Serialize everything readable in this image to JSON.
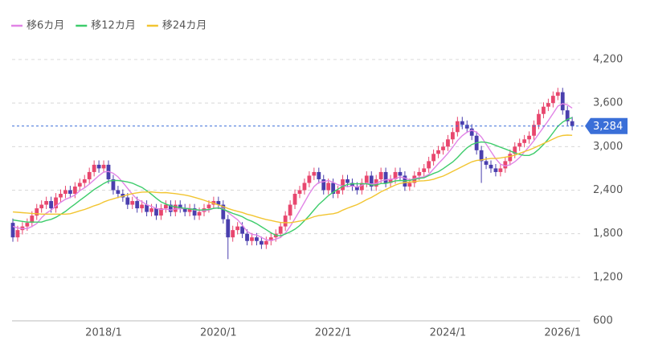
{
  "chart_data": {
    "type": "candlestick",
    "x": [
      "2016/6",
      "2016/7",
      "2016/8",
      "2016/9",
      "2016/10",
      "2016/11",
      "2016/12",
      "2017/1",
      "2017/2",
      "2017/3",
      "2017/4",
      "2017/5",
      "2017/6",
      "2017/7",
      "2017/8",
      "2017/9",
      "2017/10",
      "2017/11",
      "2017/12",
      "2018/1",
      "2018/2",
      "2018/3",
      "2018/4",
      "2018/5",
      "2018/6",
      "2018/7",
      "2018/8",
      "2018/9",
      "2018/10",
      "2018/11",
      "2018/12",
      "2019/1",
      "2019/2",
      "2019/3",
      "2019/4",
      "2019/5",
      "2019/6",
      "2019/7",
      "2019/8",
      "2019/9",
      "2019/10",
      "2019/11",
      "2019/12",
      "2020/1",
      "2020/2",
      "2020/3",
      "2020/4",
      "2020/5",
      "2020/6",
      "2020/7",
      "2020/8",
      "2020/9",
      "2020/10",
      "2020/11",
      "2020/12",
      "2021/1",
      "2021/2",
      "2021/3",
      "2021/4",
      "2021/5",
      "2021/6",
      "2021/7",
      "2021/8",
      "2021/9",
      "2021/10",
      "2021/11",
      "2021/12",
      "2022/1",
      "2022/2",
      "2022/3",
      "2022/4",
      "2022/5",
      "2022/6",
      "2022/7",
      "2022/8",
      "2022/9",
      "2022/10",
      "2022/11",
      "2022/12",
      "2023/1",
      "2023/2",
      "2023/3",
      "2023/4",
      "2023/5",
      "2023/6",
      "2023/7",
      "2023/8",
      "2023/9",
      "2023/10",
      "2023/11",
      "2023/12",
      "2024/1",
      "2024/2",
      "2024/3",
      "2024/4",
      "2024/5",
      "2024/6",
      "2024/7",
      "2024/8",
      "2024/9",
      "2024/10",
      "2024/11",
      "2024/12",
      "2025/1",
      "2025/2",
      "2025/3",
      "2025/4",
      "2025/5",
      "2025/6",
      "2025/7",
      "2025/8",
      "2025/9",
      "2025/10",
      "2025/11",
      "2025/12",
      "2026/1",
      "2026/2",
      "2026/3"
    ],
    "open": [
      1950,
      1750,
      1850,
      1900,
      1950,
      2050,
      2150,
      2200,
      2250,
      2150,
      2300,
      2350,
      2400,
      2350,
      2450,
      2500,
      2550,
      2650,
      2750,
      2700,
      2750,
      2550,
      2400,
      2350,
      2300,
      2200,
      2250,
      2150,
      2200,
      2100,
      2150,
      2050,
      2150,
      2200,
      2100,
      2200,
      2150,
      2100,
      2150,
      2050,
      2100,
      2150,
      2200,
      2250,
      2200,
      2000,
      1750,
      1850,
      1900,
      1800,
      1700,
      1750,
      1700,
      1650,
      1700,
      1750,
      1800,
      1900,
      2050,
      2200,
      2350,
      2400,
      2500,
      2600,
      2650,
      2550,
      2400,
      2500,
      2350,
      2400,
      2550,
      2500,
      2450,
      2400,
      2500,
      2600,
      2450,
      2550,
      2650,
      2500,
      2550,
      2650,
      2600,
      2450,
      2500,
      2600,
      2650,
      2700,
      2800,
      2900,
      2950,
      3000,
      3100,
      3200,
      3350,
      3300,
      3250,
      3150,
      2950,
      2800,
      2750,
      2700,
      2650,
      2700,
      2800,
      2900,
      3000,
      3050,
      3100,
      3150,
      3300,
      3450,
      3550,
      3600,
      3700,
      3750,
      3500,
      3350
    ],
    "high": [
      2010,
      1910,
      1960,
      2010,
      2110,
      2210,
      2260,
      2310,
      2310,
      2360,
      2410,
      2460,
      2460,
      2510,
      2560,
      2610,
      2710,
      2810,
      2810,
      2810,
      2810,
      2610,
      2460,
      2410,
      2360,
      2310,
      2310,
      2260,
      2260,
      2210,
      2210,
      2210,
      2260,
      2260,
      2260,
      2260,
      2210,
      2210,
      2210,
      2160,
      2210,
      2260,
      2310,
      2310,
      2260,
      2060,
      1910,
      1960,
      1960,
      1860,
      1810,
      1810,
      1760,
      1760,
      1810,
      1860,
      1960,
      2110,
      2260,
      2410,
      2460,
      2560,
      2660,
      2710,
      2710,
      2610,
      2560,
      2560,
      2460,
      2610,
      2610,
      2560,
      2510,
      2560,
      2660,
      2660,
      2610,
      2710,
      2710,
      2610,
      2710,
      2710,
      2660,
      2560,
      2660,
      2710,
      2760,
      2860,
      2960,
      3010,
      3060,
      3160,
      3260,
      3410,
      3410,
      3360,
      3310,
      3210,
      3010,
      2860,
      2810,
      2760,
      2760,
      2860,
      2960,
      3060,
      3110,
      3160,
      3210,
      3360,
      3510,
      3610,
      3660,
      3760,
      3810,
      3810,
      3560,
      3410
    ],
    "low": [
      1690,
      1690,
      1790,
      1840,
      1890,
      1990,
      2090,
      2140,
      2090,
      2090,
      2240,
      2290,
      2290,
      2290,
      2390,
      2440,
      2490,
      2590,
      2640,
      2640,
      2490,
      2340,
      2290,
      2240,
      2140,
      2140,
      2090,
      2090,
      2040,
      2040,
      1990,
      1990,
      2090,
      2040,
      2040,
      2090,
      2040,
      2040,
      1990,
      1990,
      2040,
      2090,
      2140,
      2140,
      1940,
      1450,
      1690,
      1790,
      1740,
      1640,
      1640,
      1640,
      1590,
      1590,
      1640,
      1690,
      1740,
      1840,
      1990,
      2140,
      2290,
      2340,
      2440,
      2540,
      2490,
      2340,
      2340,
      2290,
      2290,
      2340,
      2440,
      2390,
      2340,
      2340,
      2440,
      2390,
      2390,
      2490,
      2440,
      2440,
      2490,
      2540,
      2390,
      2390,
      2440,
      2540,
      2590,
      2640,
      2740,
      2840,
      2890,
      2940,
      3040,
      3140,
      3240,
      3190,
      3090,
      2890,
      2500,
      2690,
      2640,
      2590,
      2590,
      2640,
      2740,
      2840,
      2940,
      2990,
      3040,
      3090,
      3240,
      3390,
      3490,
      3540,
      3640,
      3440,
      3290,
      3224
    ],
    "close": [
      1750,
      1850,
      1900,
      1950,
      2050,
      2150,
      2200,
      2250,
      2150,
      2300,
      2350,
      2400,
      2350,
      2450,
      2500,
      2550,
      2650,
      2750,
      2700,
      2750,
      2550,
      2400,
      2350,
      2300,
      2200,
      2250,
      2150,
      2200,
      2100,
      2150,
      2050,
      2150,
      2200,
      2100,
      2200,
      2150,
      2100,
      2150,
      2050,
      2100,
      2150,
      2200,
      2250,
      2200,
      2000,
      1750,
      1850,
      1900,
      1800,
      1700,
      1750,
      1700,
      1650,
      1700,
      1750,
      1800,
      1900,
      2050,
      2200,
      2350,
      2400,
      2500,
      2600,
      2650,
      2550,
      2400,
      2500,
      2350,
      2400,
      2550,
      2500,
      2450,
      2400,
      2500,
      2600,
      2450,
      2550,
      2650,
      2500,
      2550,
      2650,
      2600,
      2450,
      2500,
      2600,
      2650,
      2700,
      2800,
      2900,
      2950,
      3000,
      3100,
      3200,
      3350,
      3300,
      3250,
      3150,
      2950,
      2800,
      2750,
      2700,
      2650,
      2700,
      2800,
      2900,
      3000,
      3050,
      3100,
      3150,
      3300,
      3450,
      3550,
      3600,
      3700,
      3750,
      3500,
      3350,
      3284
    ],
    "up_color": "#e8476e",
    "down_color": "#4a3fae",
    "series": [
      {
        "name": "移6カ月",
        "color": "#e184e6",
        "values": [
          1900,
          1880,
          1870,
          1870,
          1900,
          1940,
          2020,
          2083,
          2125,
          2183,
          2233,
          2275,
          2300,
          2333,
          2392,
          2433,
          2483,
          2542,
          2600,
          2650,
          2658,
          2633,
          2583,
          2508,
          2425,
          2342,
          2275,
          2242,
          2200,
          2175,
          2150,
          2133,
          2142,
          2125,
          2142,
          2142,
          2150,
          2150,
          2125,
          2125,
          2117,
          2125,
          2150,
          2158,
          2150,
          2092,
          2042,
          1992,
          1917,
          1833,
          1792,
          1783,
          1750,
          1717,
          1708,
          1725,
          1750,
          1808,
          1900,
          2008,
          2117,
          2233,
          2350,
          2450,
          2508,
          2517,
          2533,
          2508,
          2475,
          2458,
          2450,
          2458,
          2442,
          2467,
          2500,
          2483,
          2492,
          2525,
          2542,
          2550,
          2558,
          2583,
          2567,
          2542,
          2558,
          2575,
          2583,
          2617,
          2692,
          2767,
          2833,
          2908,
          2992,
          3083,
          3150,
          3200,
          3225,
          3200,
          3133,
          3033,
          2933,
          2833,
          2758,
          2733,
          2750,
          2792,
          2850,
          2925,
          3000,
          3083,
          3175,
          3267,
          3358,
          3458,
          3558,
          3592,
          3575,
          3531
        ]
      },
      {
        "name": "移12カ月",
        "color": "#3dcc6b",
        "values": [
          1990,
          1980,
          1970,
          1960,
          1960,
          1960,
          1960,
          1982,
          1998,
          2027,
          2067,
          2108,
          2160,
          2208,
          2259,
          2308,
          2358,
          2409,
          2450,
          2492,
          2525,
          2533,
          2533,
          2525,
          2513,
          2496,
          2467,
          2438,
          2392,
          2342,
          2288,
          2238,
          2209,
          2184,
          2171,
          2159,
          2150,
          2142,
          2134,
          2125,
          2130,
          2134,
          2150,
          2154,
          2138,
          2109,
          2080,
          2059,
          2034,
          1996,
          1971,
          1938,
          1896,
          1855,
          1813,
          1779,
          1771,
          1796,
          1825,
          1863,
          1913,
          1979,
          2050,
          2129,
          2204,
          2263,
          2325,
          2371,
          2413,
          2454,
          2479,
          2488,
          2488,
          2488,
          2488,
          2471,
          2471,
          2492,
          2492,
          2509,
          2529,
          2533,
          2530,
          2534,
          2550,
          2563,
          2571,
          2600,
          2630,
          2655,
          2696,
          2742,
          2788,
          2850,
          2921,
          2984,
          3029,
          3054,
          3063,
          3058,
          3042,
          3017,
          2992,
          2967,
          2942,
          2913,
          2892,
          2879,
          2879,
          2908,
          2963,
          3030,
          3104,
          3192,
          3279,
          3338,
          3375,
          3399
        ]
      },
      {
        "name": "移24カ月",
        "color": "#f2c531",
        "values": [
          2100,
          2095,
          2090,
          2085,
          2080,
          2075,
          2070,
          2070,
          2070,
          2070,
          2070,
          2070,
          2075,
          2094,
          2115,
          2134,
          2159,
          2185,
          2205,
          2237,
          2262,
          2280,
          2300,
          2317,
          2337,
          2352,
          2363,
          2373,
          2375,
          2376,
          2369,
          2365,
          2367,
          2359,
          2352,
          2342,
          2332,
          2319,
          2301,
          2282,
          2261,
          2238,
          2219,
          2196,
          2174,
          2147,
          2126,
          2109,
          2092,
          2069,
          2053,
          2032,
          2013,
          1995,
          1982,
          1967,
          1955,
          1953,
          1953,
          1961,
          1974,
          1988,
          2011,
          2034,
          2050,
          2059,
          2069,
          2075,
          2092,
          2125,
          2152,
          2176,
          2201,
          2234,
          2269,
          2300,
          2338,
          2378,
          2409,
          2440,
          2471,
          2494,
          2505,
          2511,
          2519,
          2526,
          2530,
          2536,
          2551,
          2574,
          2594,
          2626,
          2659,
          2692,
          2726,
          2759,
          2790,
          2809,
          2817,
          2829,
          2836,
          2836,
          2844,
          2855,
          2865,
          2882,
          2907,
          2932,
          2954,
          2981,
          3013,
          3044,
          3073,
          3105,
          3136,
          3153,
          3159,
          3156
        ]
      }
    ],
    "last_price": {
      "value": 3284,
      "label": "3,284",
      "color": "#3a6fd8"
    },
    "xticks": [
      "2018/1",
      "2020/1",
      "2022/1",
      "2024/1",
      "2026/1"
    ],
    "ylim": [
      600,
      4200
    ],
    "yticks": [
      600,
      {
        "value": 1200,
        "label": "1,200"
      },
      {
        "value": 1800,
        "label": "1,800"
      },
      {
        "value": 2400,
        "label": "2,400"
      },
      {
        "value": 3000,
        "label": "3,000"
      },
      {
        "value": 3600,
        "label": "3,600"
      },
      {
        "value": 4200,
        "label": "4,200"
      }
    ],
    "grid": true,
    "legend": "top-left"
  }
}
